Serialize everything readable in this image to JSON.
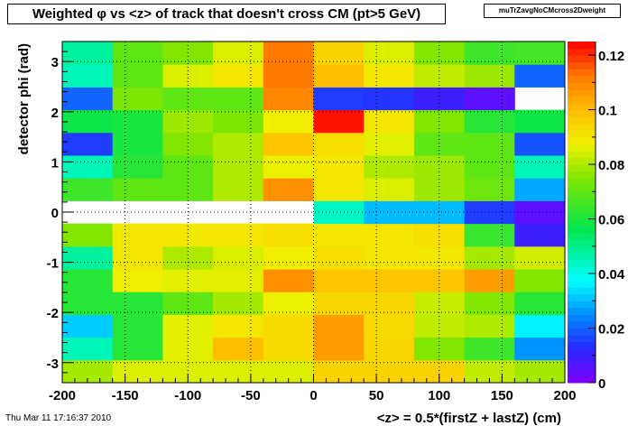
{
  "title": "Weighted φ vs <z> of track that doesn't cross CM (pt>5 GeV)",
  "stat_box_name": "muTrZavgNoCMcross2Dweight",
  "footer_date": "Thu Mar 11 17:16:37 2010",
  "chart_data": {
    "type": "heatmap",
    "xlabel": "<z> = 0.5*(firstZ + lastZ) (cm)",
    "ylabel": "detector phi (rad)",
    "xlim": [
      -200,
      200
    ],
    "ylim": [
      -3.4,
      3.4
    ],
    "x_edges": [
      -200,
      -160,
      -120,
      -80,
      -40,
      0,
      40,
      80,
      120,
      160,
      200
    ],
    "x_ticks": [
      -200,
      -150,
      -100,
      -50,
      0,
      50,
      100,
      150,
      200
    ],
    "y_ticks": [
      -3,
      -2,
      -1,
      0,
      1,
      2,
      3
    ],
    "z_range": [
      0,
      0.125
    ],
    "z_ticks": [
      0,
      0.02,
      0.04,
      0.06,
      0.08,
      0.1,
      0.12
    ],
    "grid": true,
    "row_order": "bottom-to-top",
    "values": [
      [
        0.079,
        0.085,
        0.085,
        0.085,
        0.085,
        0.095,
        0.095,
        0.095,
        0.082,
        0.079
      ],
      [
        0.045,
        0.062,
        0.086,
        0.1,
        0.093,
        0.106,
        0.094,
        0.075,
        0.065,
        0.026
      ],
      [
        0.032,
        0.062,
        0.086,
        0.09,
        0.093,
        0.106,
        0.093,
        0.082,
        0.08,
        0.036
      ],
      [
        0.062,
        0.062,
        0.07,
        0.079,
        0.087,
        0.094,
        0.094,
        0.083,
        0.075,
        0.062
      ],
      [
        0.062,
        0.088,
        0.086,
        0.086,
        0.108,
        0.098,
        0.098,
        0.098,
        0.106,
        0.075
      ],
      [
        0.048,
        0.09,
        0.08,
        0.085,
        0.088,
        0.092,
        0.09,
        0.09,
        0.079,
        0.084
      ],
      [
        0.075,
        0.09,
        0.09,
        0.09,
        0.092,
        0.09,
        0.09,
        0.092,
        0.064,
        0.01
      ],
      [
        null,
        null,
        null,
        null,
        null,
        0.044,
        0.03,
        0.03,
        0.015,
        0.005
      ],
      [
        0.065,
        0.07,
        0.07,
        0.08,
        0.108,
        0.09,
        0.085,
        0.078,
        0.072,
        0.028
      ],
      [
        0.045,
        0.062,
        0.07,
        0.08,
        0.087,
        0.09,
        0.08,
        0.078,
        0.07,
        0.045
      ],
      [
        0.015,
        0.06,
        0.075,
        0.08,
        0.098,
        0.092,
        0.086,
        0.07,
        0.07,
        0.018
      ],
      [
        0.058,
        0.06,
        0.078,
        0.074,
        0.088,
        0.123,
        0.09,
        0.075,
        0.062,
        0.058
      ],
      [
        0.02,
        0.074,
        0.07,
        0.07,
        0.11,
        0.015,
        0.014,
        0.01,
        0.005,
        null
      ],
      [
        0.045,
        0.07,
        0.085,
        0.09,
        0.112,
        0.1,
        0.09,
        0.082,
        0.078,
        0.02
      ],
      [
        0.048,
        0.07,
        0.075,
        0.085,
        0.112,
        0.095,
        0.085,
        0.075,
        0.065,
        0.066
      ]
    ]
  }
}
